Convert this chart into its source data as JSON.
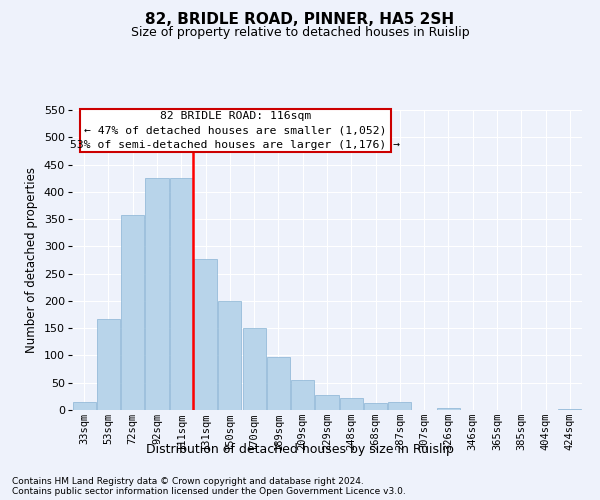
{
  "title1": "82, BRIDLE ROAD, PINNER, HA5 2SH",
  "title2": "Size of property relative to detached houses in Ruislip",
  "xlabel": "Distribution of detached houses by size in Ruislip",
  "ylabel": "Number of detached properties",
  "categories": [
    "33sqm",
    "53sqm",
    "72sqm",
    "92sqm",
    "111sqm",
    "131sqm",
    "150sqm",
    "170sqm",
    "189sqm",
    "209sqm",
    "229sqm",
    "248sqm",
    "268sqm",
    "287sqm",
    "307sqm",
    "326sqm",
    "346sqm",
    "365sqm",
    "385sqm",
    "404sqm",
    "424sqm"
  ],
  "values": [
    15,
    167,
    357,
    425,
    425,
    277,
    200,
    150,
    97,
    55,
    28,
    22,
    13,
    15,
    0,
    3,
    0,
    0,
    0,
    0,
    2
  ],
  "bar_color": "#b8d4ea",
  "bar_edge_color": "#8ab4d4",
  "vline_x": 4.5,
  "vline_color": "red",
  "annotation_title": "82 BRIDLE ROAD: 116sqm",
  "annotation_line1": "← 47% of detached houses are smaller (1,052)",
  "annotation_line2": "53% of semi-detached houses are larger (1,176) →",
  "annotation_box_color": "#ffffff",
  "annotation_box_edge": "#cc0000",
  "ylim": [
    0,
    550
  ],
  "yticks": [
    0,
    50,
    100,
    150,
    200,
    250,
    300,
    350,
    400,
    450,
    500,
    550
  ],
  "footnote1": "Contains HM Land Registry data © Crown copyright and database right 2024.",
  "footnote2": "Contains public sector information licensed under the Open Government Licence v3.0.",
  "bg_color": "#eef2fb"
}
